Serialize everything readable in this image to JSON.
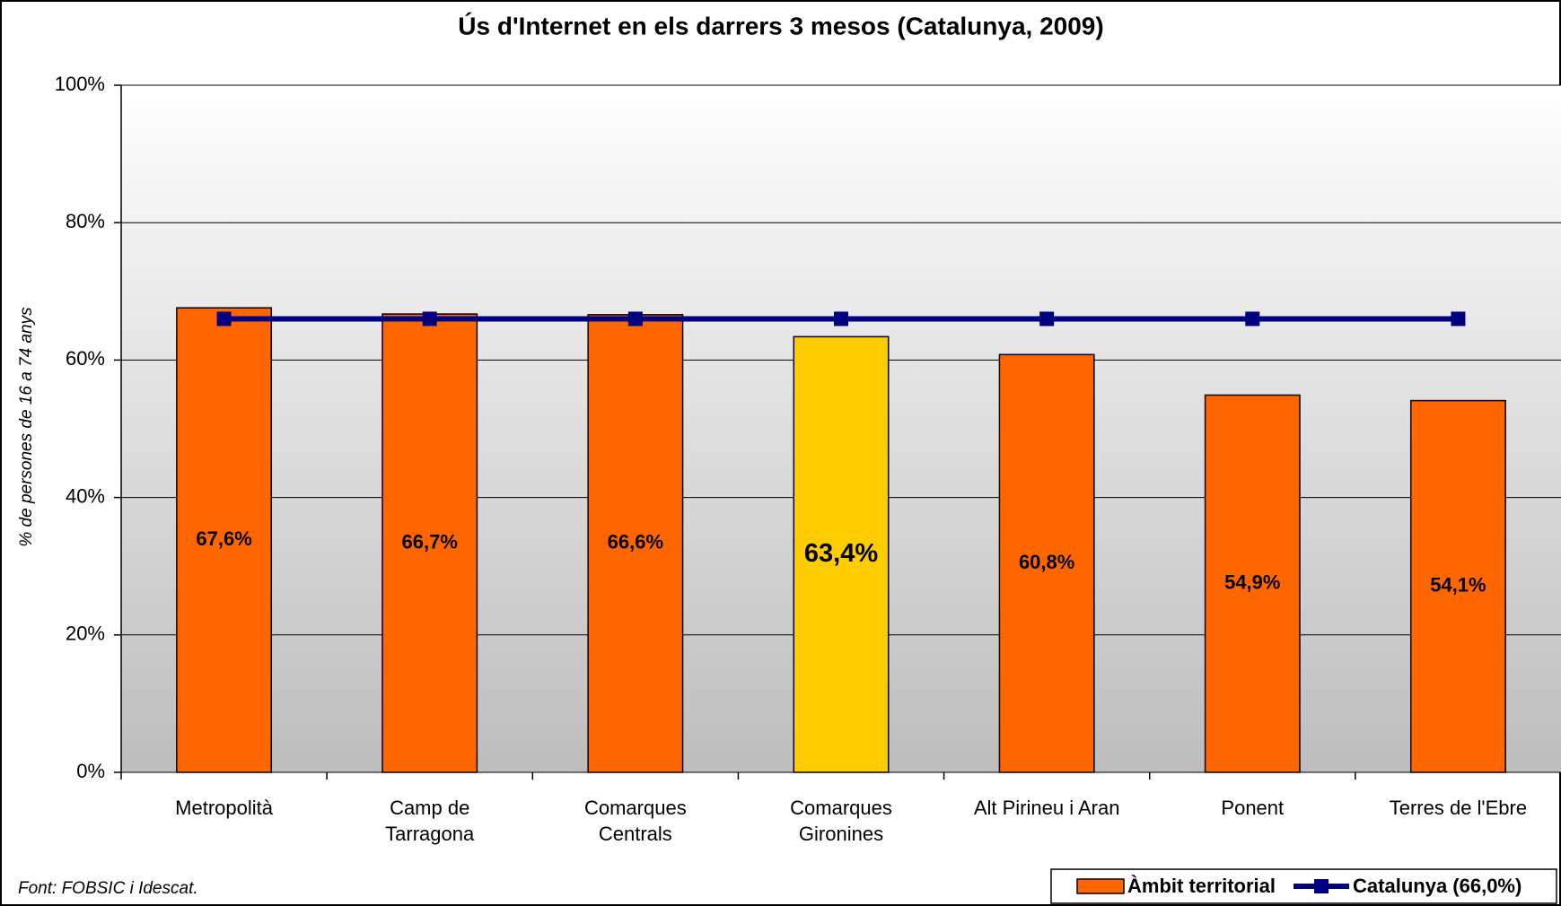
{
  "chart_data": {
    "type": "bar",
    "title": "Ús d'Internet en els darrers 3 mesos (Catalunya, 2009)",
    "y_label": "% de persones de 16 a 74 anys",
    "source": "Font: FOBSIC i Idescat.",
    "categories": [
      "Metropolità",
      "Camp de\nTarragona",
      "Comarques\nCentrals",
      "Comarques\nGironines",
      "Alt Pirineu i Aran",
      "Ponent",
      "Terres de l'Ebre"
    ],
    "series": [
      {
        "name": "Àmbit territorial",
        "type": "bar",
        "color": "#ff6600",
        "colors": [
          "#ff6600",
          "#ff6600",
          "#ff6600",
          "#ffcc00",
          "#ff6600",
          "#ff6600",
          "#ff6600"
        ],
        "values": [
          67.6,
          66.7,
          66.6,
          63.4,
          60.8,
          54.9,
          54.1
        ],
        "value_labels": [
          "67,6%",
          "66,7%",
          "66,6%",
          "63,4%",
          "60,8%",
          "54,9%",
          "54,1%"
        ]
      },
      {
        "name": "Catalunya (66,0%)",
        "type": "line",
        "color": "#000080",
        "values": [
          66.0,
          66.0,
          66.0,
          66.0,
          66.0,
          66.0,
          66.0
        ]
      }
    ],
    "ylim": [
      0,
      100
    ],
    "yticks": [
      {
        "value": 0,
        "label": "0%"
      },
      {
        "value": 20,
        "label": "20%"
      },
      {
        "value": 40,
        "label": "40%"
      },
      {
        "value": 60,
        "label": "60%"
      },
      {
        "value": 80,
        "label": "80%"
      },
      {
        "value": 100,
        "label": "100%"
      }
    ],
    "grid": true,
    "legend": "bottom-right"
  }
}
